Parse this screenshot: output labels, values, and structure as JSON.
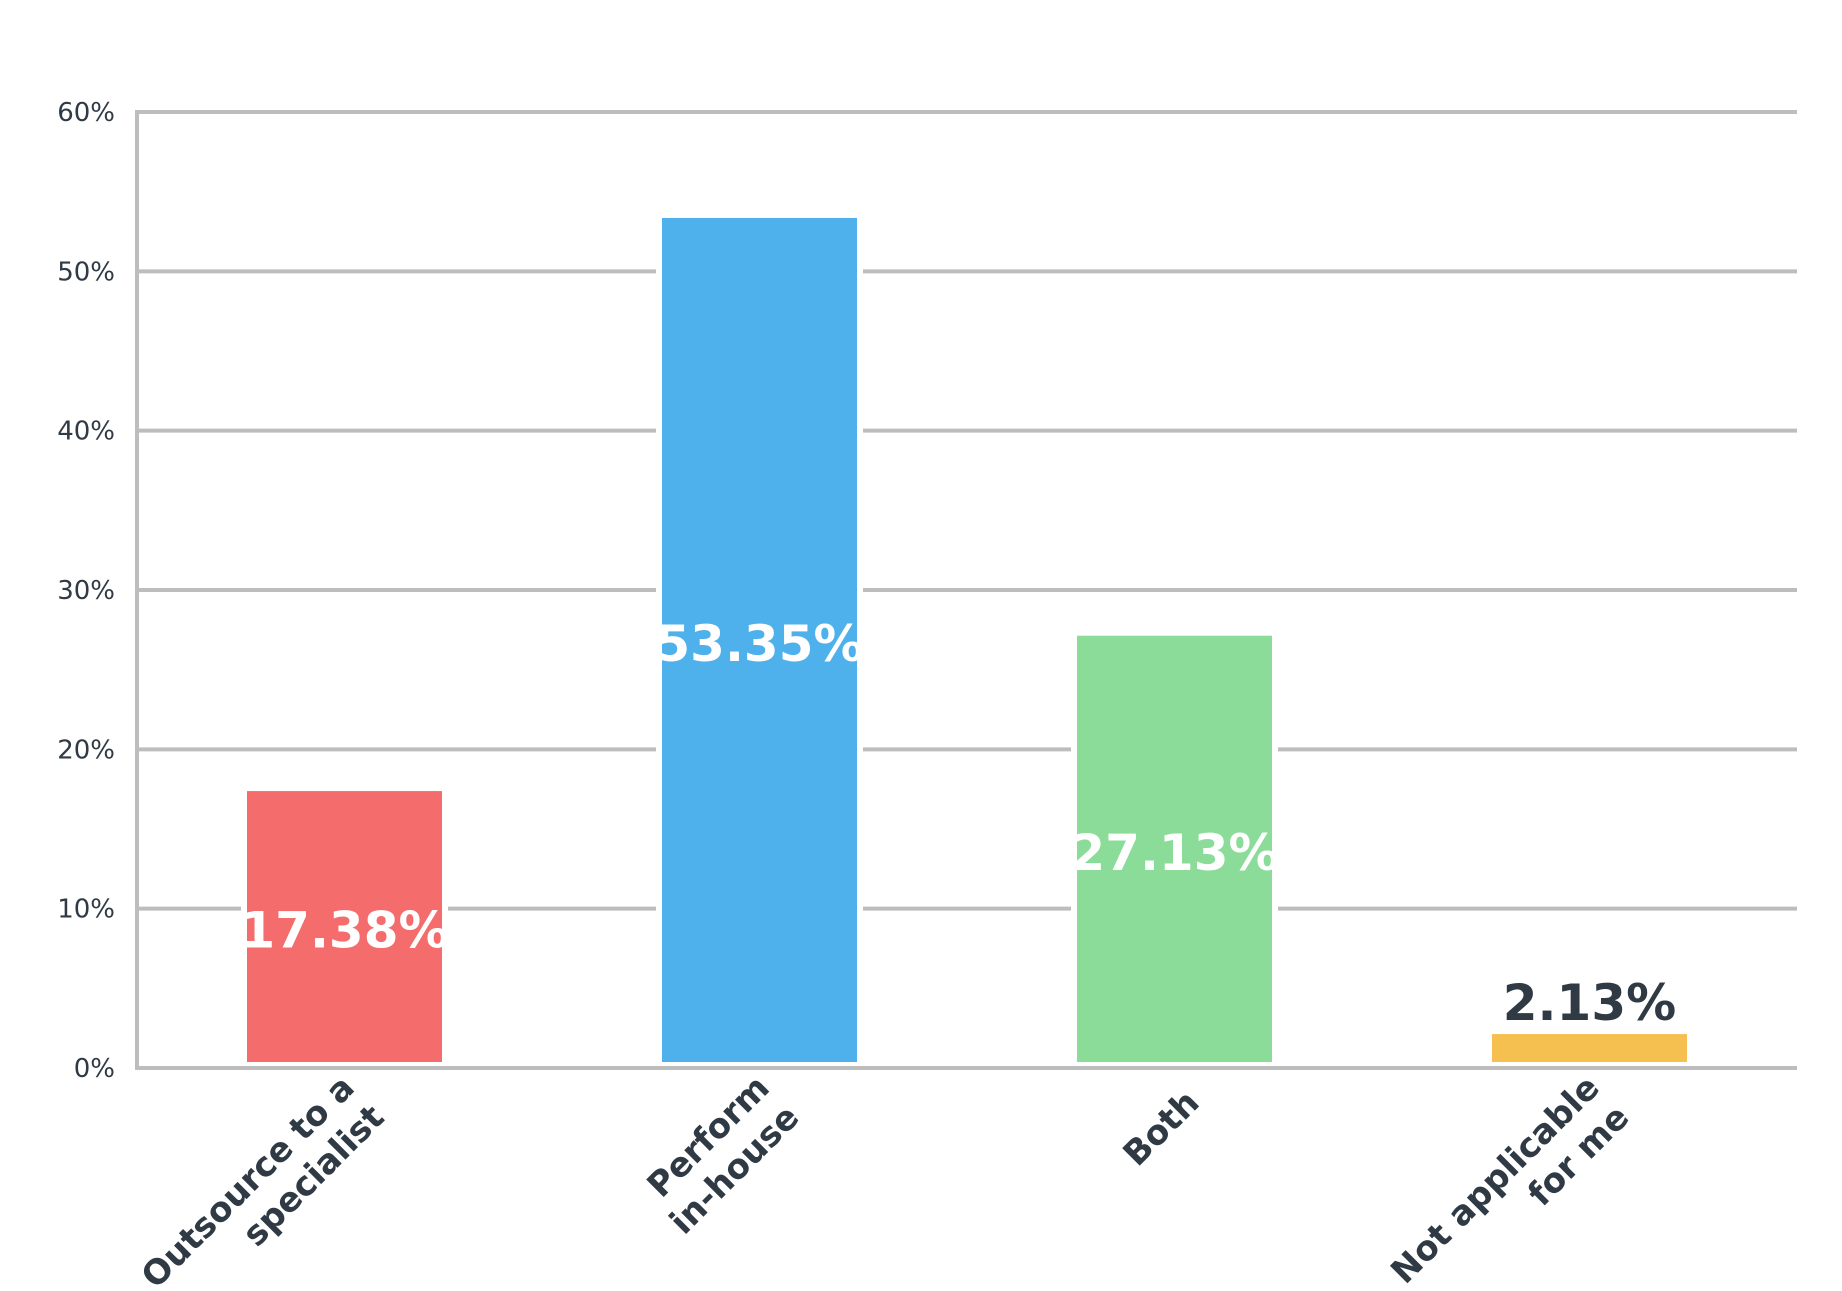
{
  "chart_data": {
    "type": "bar",
    "categories": [
      [
        "Outsource to a",
        "specialist"
      ],
      [
        "Perform",
        "in-house"
      ],
      [
        "Both"
      ],
      [
        "Not applicable",
        "for me"
      ]
    ],
    "values": [
      17.38,
      53.35,
      27.13,
      2.13
    ],
    "value_labels": [
      "17.38%",
      "53.35%",
      "27.13%",
      "2.13%"
    ],
    "bar_colors": [
      "#f46c6c",
      "#4fb1ec",
      "#8bdc99",
      "#f5c04f"
    ],
    "value_label_colors": [
      "#ffffff",
      "#ffffff",
      "#ffffff",
      "#2f3a45"
    ],
    "ylim": [
      0,
      60
    ],
    "yticks": [
      0,
      10,
      20,
      30,
      40,
      50,
      60
    ],
    "ytick_labels": [
      "0%",
      "10%",
      "20%",
      "30%",
      "40%",
      "50%",
      "60%"
    ],
    "grid": true,
    "grid_color": "#bdbdbd",
    "title": "",
    "xlabel": "",
    "ylabel": ""
  }
}
